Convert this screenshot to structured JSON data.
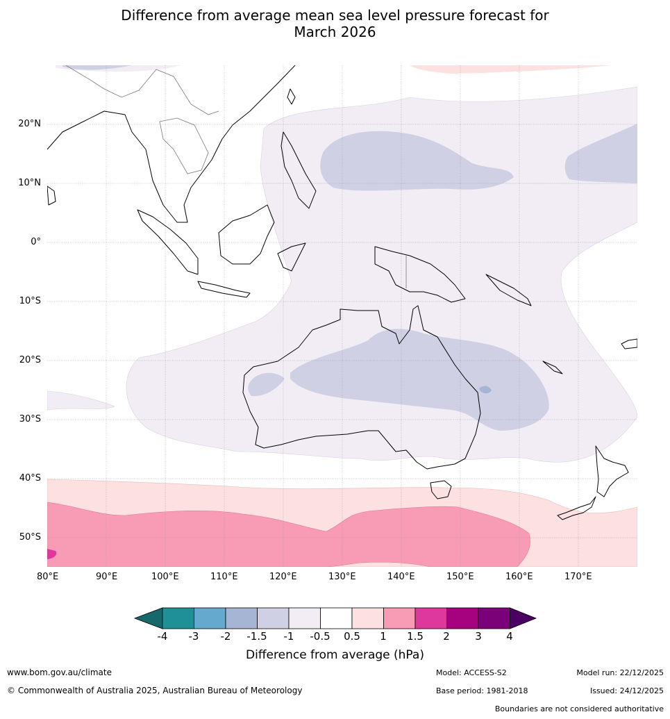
{
  "title": {
    "line1": "Difference from average mean sea level pressure forecast for",
    "line2": "March 2026"
  },
  "map": {
    "lat_labels": [
      "20°N",
      "10°N",
      "0°",
      "10°S",
      "20°S",
      "30°S",
      "40°S",
      "50°S"
    ],
    "lon_labels": [
      "80°E",
      "90°E",
      "100°E",
      "110°E",
      "120°E",
      "130°E",
      "140°E",
      "150°E",
      "160°E",
      "170°E"
    ],
    "extent": {
      "lon": [
        80,
        180
      ],
      "lat": [
        -55,
        30
      ]
    }
  },
  "colorbar": {
    "title": "Difference from average (hPa)",
    "tick_labels": [
      "-4",
      "-3",
      "-2",
      "-1.5",
      "-1",
      "-0.5",
      "0.5",
      "1",
      "1.5",
      "2",
      "3",
      "4"
    ],
    "colors": [
      "#15696a",
      "#1f9096",
      "#65a9cf",
      "#a6b5d3",
      "#cfd0e4",
      "#f2ecf4",
      "#ffffff",
      "#fde0e0",
      "#f89bb5",
      "#de389c",
      "#a6027f",
      "#7a017a",
      "#4b0064"
    ]
  },
  "footer": {
    "website": "www.bom.gov.au/climate",
    "copyright": "© Commonwealth of Australia 2025, Australian Bureau of Meteorology",
    "model": "Model: ACCESS-S2",
    "base_period": "Base period: 1981-2018",
    "model_run": "Model run: 22/12/2025",
    "issued": "Issued: 24/12/2025",
    "disclaimer": "Boundaries are not considered authoritative"
  }
}
